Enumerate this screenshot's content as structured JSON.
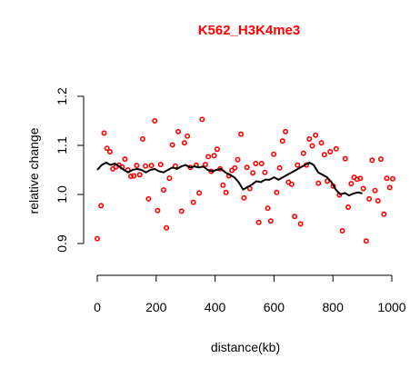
{
  "chart_data": {
    "type": "scatter",
    "title": "K562_H3K4me3",
    "xlabel": "distance(kb)",
    "ylabel": "relative change",
    "xlim": [
      0,
      1000
    ],
    "ylim": [
      0.9,
      1.2
    ],
    "x_ticks": [
      "0",
      "200",
      "400",
      "600",
      "800",
      "1000"
    ],
    "y_ticks": [
      "0.9",
      "1.0",
      "1.1",
      "1.2"
    ],
    "colors": {
      "title": "#ff0000",
      "points": "#ff0000",
      "line": "#000000"
    },
    "grid": false,
    "series": [
      {
        "type": "scatter",
        "points": [
          [
            0,
            0.91
          ],
          [
            13,
            0.977
          ],
          [
            23,
            1.125
          ],
          [
            33,
            1.094
          ],
          [
            43,
            1.087
          ],
          [
            53,
            1.052
          ],
          [
            63,
            1.056
          ],
          [
            74,
            1.06
          ],
          [
            84,
            1.056
          ],
          [
            94,
            1.072
          ],
          [
            104,
            1.05
          ],
          [
            114,
            1.037
          ],
          [
            124,
            1.038
          ],
          [
            134,
            1.059
          ],
          [
            144,
            1.04
          ],
          [
            154,
            1.113
          ],
          [
            164,
            1.058
          ],
          [
            174,
            0.991
          ],
          [
            184,
            1.059
          ],
          [
            195,
            1.15
          ],
          [
            205,
            0.967
          ],
          [
            215,
            1.061
          ],
          [
            225,
            1.009
          ],
          [
            235,
            0.932
          ],
          [
            245,
            1.033
          ],
          [
            255,
            1.101
          ],
          [
            265,
            1.058
          ],
          [
            275,
            1.128
          ],
          [
            286,
            0.966
          ],
          [
            296,
            1.105
          ],
          [
            306,
            1.119
          ],
          [
            316,
            1.055
          ],
          [
            326,
            0.984
          ],
          [
            336,
            1.06
          ],
          [
            346,
            1.003
          ],
          [
            356,
            1.153
          ],
          [
            367,
            1.061
          ],
          [
            377,
            1.077
          ],
          [
            387,
            1.047
          ],
          [
            397,
            1.079
          ],
          [
            407,
            1.092
          ],
          [
            417,
            1.052
          ],
          [
            427,
            1.019
          ],
          [
            437,
            1.004
          ],
          [
            447,
            1.038
          ],
          [
            457,
            1.049
          ],
          [
            467,
            1.054
          ],
          [
            477,
            1.071
          ],
          [
            488,
            1.123
          ],
          [
            498,
            0.993
          ],
          [
            508,
            1.055
          ],
          [
            518,
            1.012
          ],
          [
            528,
            1.044
          ],
          [
            538,
            1.063
          ],
          [
            548,
            0.943
          ],
          [
            558,
            1.063
          ],
          [
            569,
            1.045
          ],
          [
            579,
            0.972
          ],
          [
            589,
            0.946
          ],
          [
            599,
            1.082
          ],
          [
            609,
            1.004
          ],
          [
            619,
            1.054
          ],
          [
            629,
            1.109
          ],
          [
            639,
            1.128
          ],
          [
            649,
            1.025
          ],
          [
            660,
            1.021
          ],
          [
            670,
            0.955
          ],
          [
            680,
            1.06
          ],
          [
            690,
            0.94
          ],
          [
            700,
            1.084
          ],
          [
            710,
            1.06
          ],
          [
            720,
            1.113
          ],
          [
            730,
            1.099
          ],
          [
            741,
            1.121
          ],
          [
            751,
            1.023
          ],
          [
            761,
            1.105
          ],
          [
            771,
            1.081
          ],
          [
            781,
            1.027
          ],
          [
            791,
            1.087
          ],
          [
            801,
            1.017
          ],
          [
            811,
            1.093
          ],
          [
            822,
            0.999
          ],
          [
            832,
            0.926
          ],
          [
            842,
            1.073
          ],
          [
            852,
            0.974
          ],
          [
            862,
            1.022
          ],
          [
            872,
            1.035
          ],
          [
            882,
            1.031
          ],
          [
            893,
            1.033
          ],
          [
            903,
            1.012
          ],
          [
            913,
            0.905
          ],
          [
            923,
            0.991
          ],
          [
            933,
            1.07
          ],
          [
            943,
            1.008
          ],
          [
            953,
            0.987
          ],
          [
            963,
            1.072
          ],
          [
            973,
            0.96
          ],
          [
            983,
            1.033
          ],
          [
            993,
            1.014
          ],
          [
            1003,
            1.032
          ]
        ]
      },
      {
        "type": "line",
        "points": [
          [
            0,
            1.05
          ],
          [
            15,
            1.06
          ],
          [
            30,
            1.065
          ],
          [
            45,
            1.06
          ],
          [
            60,
            1.063
          ],
          [
            75,
            1.057
          ],
          [
            90,
            1.05
          ],
          [
            105,
            1.045
          ],
          [
            120,
            1.05
          ],
          [
            135,
            1.052
          ],
          [
            150,
            1.05
          ],
          [
            165,
            1.045
          ],
          [
            180,
            1.05
          ],
          [
            195,
            1.052
          ],
          [
            210,
            1.047
          ],
          [
            225,
            1.045
          ],
          [
            240,
            1.05
          ],
          [
            255,
            1.055
          ],
          [
            270,
            1.052
          ],
          [
            285,
            1.057
          ],
          [
            300,
            1.06
          ],
          [
            315,
            1.055
          ],
          [
            330,
            1.057
          ],
          [
            345,
            1.055
          ],
          [
            360,
            1.057
          ],
          [
            375,
            1.05
          ],
          [
            390,
            1.047
          ],
          [
            405,
            1.05
          ],
          [
            420,
            1.052
          ],
          [
            435,
            1.045
          ],
          [
            450,
            1.04
          ],
          [
            465,
            1.035
          ],
          [
            480,
            1.025
          ],
          [
            495,
            1.01
          ],
          [
            510,
            1.015
          ],
          [
            525,
            1.02
          ],
          [
            540,
            1.027
          ],
          [
            555,
            1.025
          ],
          [
            570,
            1.03
          ],
          [
            585,
            1.03
          ],
          [
            600,
            1.035
          ],
          [
            615,
            1.03
          ],
          [
            630,
            1.035
          ],
          [
            645,
            1.04
          ],
          [
            660,
            1.045
          ],
          [
            675,
            1.05
          ],
          [
            690,
            1.055
          ],
          [
            705,
            1.06
          ],
          [
            720,
            1.065
          ],
          [
            735,
            1.06
          ],
          [
            750,
            1.045
          ],
          [
            765,
            1.04
          ],
          [
            780,
            1.035
          ],
          [
            795,
            1.025
          ],
          [
            810,
            1.01
          ],
          [
            825,
            1.0
          ],
          [
            840,
            1.003
          ],
          [
            855,
            0.998
          ],
          [
            870,
            1.002
          ],
          [
            885,
            1.004
          ],
          [
            900,
            1.002
          ]
        ]
      }
    ]
  }
}
